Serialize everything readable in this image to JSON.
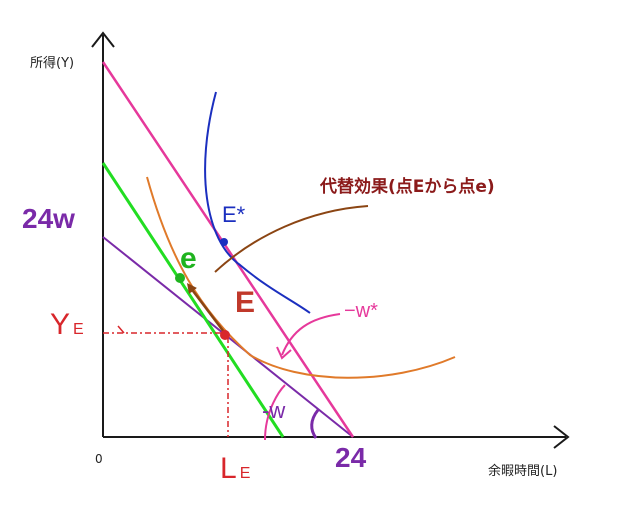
{
  "labels": {
    "y_axis": "所得(Y)",
    "x_axis": "余暇時間(L)",
    "origin": "0",
    "y_intercept": "24w",
    "x_intercept": "24",
    "ye_main": "Y",
    "ye_sub": "E",
    "le_main": "L",
    "le_sub": "E",
    "caption": "代替効果(点Eから点e)",
    "point_E": "E",
    "point_Estar": "E*",
    "point_e": "e",
    "slope_new": "−w*",
    "slope_old": "-w"
  },
  "colors": {
    "axis": "#1a1a1a",
    "original_budget": "#7a2aa8",
    "new_budget": "#e6399b",
    "compensated_budget": "#22dd22",
    "indifference_low": "#e07a2a",
    "indifference_high": "#1b2fbf",
    "arrow": "#8b4513",
    "point_E": "#d8262b",
    "point_Estar": "#1b2fbf",
    "point_e": "#1fb31f"
  }
}
